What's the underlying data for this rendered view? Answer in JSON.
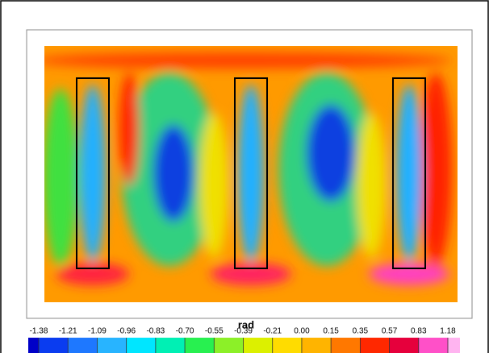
{
  "chart_data": {
    "type": "contour",
    "colorbar_title": "rad",
    "levels": [
      -1.38,
      -1.21,
      -1.09,
      -0.96,
      -0.83,
      {
        "value": -0.7,
        "label": "-0.70"
      },
      -0.55,
      -0.39,
      -0.21,
      {
        "value": 0,
        "label": "0.00"
      },
      0.15,
      0.35,
      0.57,
      0.83,
      1.18
    ],
    "colors": [
      "#0000c8",
      "#0a3cf0",
      "#1e78ff",
      "#28b4ff",
      "#00e6ff",
      "#00f0b4",
      "#28f050",
      "#8cf028",
      "#dcf000",
      "#ffdc00",
      "#ffb400",
      "#ff7800",
      "#ff2800",
      "#e6003c",
      "#ff50c8",
      "#ffb4f0"
    ]
  }
}
